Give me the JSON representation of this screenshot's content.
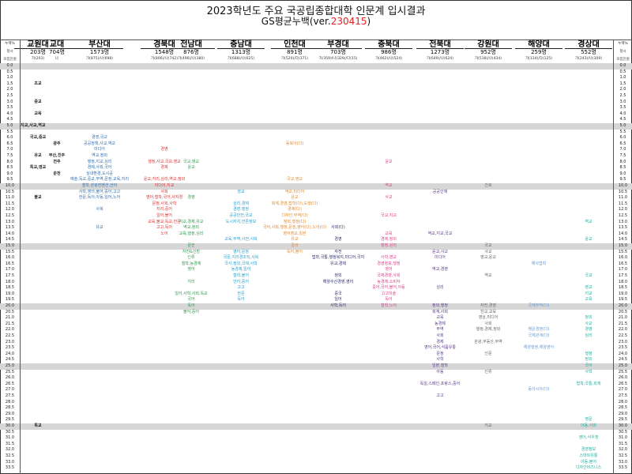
{
  "title": "2023학년도 주요 국공립종합대학 인문계 입시결과",
  "subtitle_prefix": "GS평균누백(ver.",
  "subtitle_version": "230415",
  "subtitle_suffix": ")",
  "side_labels": {
    "pct": "누백%",
    "type": "정시",
    "recruit": "모집인원"
  },
  "universities": [
    {
      "name": "교원대",
      "count": "203명",
      "detail": "가(203)",
      "color": "#222222"
    },
    {
      "name": "교대",
      "count": "704명",
      "detail": "나",
      "color": "#222222"
    },
    {
      "name": "부산대",
      "count": "1573명",
      "detail": "가(875)/나(698)",
      "color": "#2e6fb0"
    },
    {
      "name": "경북대",
      "count": "1548명",
      "detail": "가(806)/나(742)",
      "color": "#e03030"
    },
    {
      "name": "전남대",
      "count": "876명",
      "detail": "가(496)/나(380)",
      "color": "#2f9a50"
    },
    {
      "name": "충남대",
      "count": "1313명",
      "detail": "가(688)/나(625)",
      "color": "#2aa0d0"
    },
    {
      "name": "인천대",
      "count": "891명",
      "detail": "가(520)/다(371)",
      "color": "#e08a30"
    },
    {
      "name": "부경대",
      "count": "703명",
      "detail": "가(359)/나(329)/다(15)",
      "color": "#2b2b6b"
    },
    {
      "name": "충북대",
      "count": "986명",
      "detail": "가(462)/나(524)",
      "color": "#e0408a"
    },
    {
      "name": "전북대",
      "count": "1273명",
      "detail": "가(649)/나(624)",
      "color": "#5a3a8a"
    },
    {
      "name": "강원대",
      "count": "952명",
      "detail": "가(518)/나(434)",
      "color": "#666666"
    },
    {
      "name": "해양대",
      "count": "259명",
      "detail": "가(134)/다(125)",
      "color": "#6a9ad0"
    },
    {
      "name": "경상대",
      "count": "552명",
      "detail": "가(243)/나(309)",
      "color": "#20b0a0"
    }
  ],
  "pct_range": {
    "start": 0.0,
    "end": 33.5,
    "step": 0.5,
    "highlight_every": 5
  },
  "cells": [
    {
      "col": 0,
      "pct": 1.5,
      "text": "초교"
    },
    {
      "col": 0,
      "pct": 3.0,
      "text": "중교"
    },
    {
      "col": 0,
      "pct": 4.0,
      "text": "교육"
    },
    {
      "col": -1,
      "pct": 5.0,
      "text": "지교,사교,역교"
    },
    {
      "col": 0,
      "pct": 6.0,
      "text": "국교,중교"
    },
    {
      "col": 0,
      "pct": 7.5,
      "text": "유교"
    },
    {
      "col": 0,
      "pct": 8.5,
      "text": "특교,영교"
    },
    {
      "col": 0,
      "pct": 11.0,
      "text": "불교"
    },
    {
      "col": 0,
      "pct": 30.0,
      "text": "특교"
    },
    {
      "col": 1,
      "pct": 6.5,
      "text": "광주"
    },
    {
      "col": 1,
      "pct": 7.5,
      "text": "부산,진주"
    },
    {
      "col": 1,
      "pct": 8.0,
      "text": "전주"
    },
    {
      "col": 1,
      "pct": 9.0,
      "text": "춘천"
    },
    {
      "col": 2,
      "pct": 6.0,
      "text": "경영,국교"
    },
    {
      "col": 2,
      "pct": 6.5,
      "text": "공공정책,사교,역교"
    },
    {
      "col": 2,
      "pct": 7.0,
      "text": "미디어"
    },
    {
      "col": 2,
      "pct": 7.5,
      "text": "역교,정외"
    },
    {
      "col": 2,
      "pct": 8.0,
      "text": "행정,지교,심리"
    },
    {
      "col": 2,
      "pct": 8.5,
      "text": "경제,사회,국어"
    },
    {
      "col": 2,
      "pct": 9.0,
      "text": "실내환경,도시공"
    },
    {
      "col": 2,
      "pct": 9.5,
      "text": "예술,독교,중교,무역,문정,교육,지리"
    },
    {
      "col": 2,
      "pct": 10.0,
      "text": "철학,관광컨벤션,언어"
    },
    {
      "col": 2,
      "pct": 10.5,
      "text": "사학,영어,불어,중어,고고"
    },
    {
      "col": 2,
      "pct": 11.0,
      "text": "한문,독어,아동,일어,노어"
    },
    {
      "col": 2,
      "pct": 12.0,
      "text": "사복"
    },
    {
      "col": 2,
      "pct": 13.5,
      "text": "유교"
    },
    {
      "col": 3,
      "pct": 7.0,
      "text": "경영"
    },
    {
      "col": 3,
      "pct": 8.0,
      "text": "행정,사교,국교,영교"
    },
    {
      "col": 3,
      "pct": 8.5,
      "text": "경제"
    },
    {
      "col": 3,
      "pct": 9.5,
      "text": "윤교,지리,심리,역교,정외"
    },
    {
      "col": 3,
      "pct": 10.0,
      "text": "미디어,지교"
    },
    {
      "col": 3,
      "pct": 10.5,
      "text": "사회"
    },
    {
      "col": 3,
      "pct": 11.0,
      "text": "영어,철학,국어,사자경"
    },
    {
      "col": 3,
      "pct": 11.5,
      "text": "문정,사회,사학"
    },
    {
      "col": 3,
      "pct": 12.0,
      "text": "지리,중어"
    },
    {
      "col": 3,
      "pct": 12.5,
      "text": "일어,불어"
    },
    {
      "col": 3,
      "pct": 13.0,
      "text": "교육,불교,독교,한문"
    },
    {
      "col": 3,
      "pct": 13.5,
      "text": "고고,독어"
    },
    {
      "col": 3,
      "pct": 14.0,
      "text": "노어"
    },
    {
      "col": 4,
      "pct": 8.0,
      "text": "국교,영교"
    },
    {
      "col": 4,
      "pct": 8.5,
      "text": "윤교"
    },
    {
      "col": 4,
      "pct": 11.0,
      "text": "경영"
    },
    {
      "col": 4,
      "pct": 13.0,
      "text": "지교,경제,유교"
    },
    {
      "col": 4,
      "pct": 13.5,
      "text": "역교,정외"
    },
    {
      "col": 4,
      "pct": 14.0,
      "text": "교육,행정,심리"
    },
    {
      "col": 4,
      "pct": 15.0,
      "text": "문헌"
    },
    {
      "col": 4,
      "pct": 15.5,
      "text": "자전&신방"
    },
    {
      "col": 4,
      "pct": 16.0,
      "text": "인류"
    },
    {
      "col": 4,
      "pct": 16.5,
      "text": "철학,농경제"
    },
    {
      "col": 4,
      "pct": 17.0,
      "text": "영어"
    },
    {
      "col": 4,
      "pct": 18.0,
      "text": "지리"
    },
    {
      "col": 4,
      "pct": 19.0,
      "text": "일어,사학,사회,독교"
    },
    {
      "col": 4,
      "pct": 19.5,
      "text": "국어"
    },
    {
      "col": 4,
      "pct": 20.0,
      "text": "독어"
    },
    {
      "col": 4,
      "pct": 20.5,
      "text": "불어,중어"
    },
    {
      "col": 5,
      "pct": 10.5,
      "text": "영교"
    },
    {
      "col": 5,
      "pct": 11.5,
      "text": "심리,경제"
    },
    {
      "col": 5,
      "pct": 12.0,
      "text": "경영,행정"
    },
    {
      "col": 5,
      "pct": 12.5,
      "text": "공공안전,국교"
    },
    {
      "col": 5,
      "pct": 13.0,
      "text": "도시자치,언론정보"
    },
    {
      "col": 5,
      "pct": 14.5,
      "text": "교육,무역,사전,사회"
    },
    {
      "col": 5,
      "pct": 15.5,
      "text": "영어,문정"
    },
    {
      "col": 5,
      "pct": 16.0,
      "text": "국문,지리경조직,사복"
    },
    {
      "col": 5,
      "pct": 16.5,
      "text": "국사,정외,국제,사학"
    },
    {
      "col": 5,
      "pct": 17.0,
      "text": "농경제,일어"
    },
    {
      "col": 5,
      "pct": 17.5,
      "text": "철학,불어"
    },
    {
      "col": 5,
      "pct": 18.0,
      "text": "언어,중어"
    },
    {
      "col": 5,
      "pct": 18.5,
      "text": "고고"
    },
    {
      "col": 5,
      "pct": 19.0,
      "text": "한문"
    },
    {
      "col": 5,
      "pct": 19.5,
      "text": "독어"
    },
    {
      "col": 6,
      "pct": 6.5,
      "text": "동북아(다)"
    },
    {
      "col": 6,
      "pct": 9.5,
      "text": "국교,영교"
    },
    {
      "col": 6,
      "pct": 10.5,
      "text": "역교,미디어"
    },
    {
      "col": 6,
      "pct": 11.0,
      "text": "윤교"
    },
    {
      "col": 6,
      "pct": 11.5,
      "text": "회계,경영,법학(다),도행(다)"
    },
    {
      "col": 6,
      "pct": 12.0,
      "text": "경제(다)"
    },
    {
      "col": 6,
      "pct": 12.5,
      "text": "디자인,무역(다)"
    },
    {
      "col": 6,
      "pct": 13.0,
      "text": "정외,행정(다)"
    },
    {
      "col": 6,
      "pct": 13.5,
      "text": "국어,사회,행정,문정,영어(다),노어(다)"
    },
    {
      "col": 6,
      "pct": 14.0,
      "text": "영어영교,일본"
    },
    {
      "col": 6,
      "pct": 14.5,
      "text": "유교"
    },
    {
      "col": 6,
      "pct": 15.0,
      "text": "중어"
    },
    {
      "col": 6,
      "pct": 15.5,
      "text": "독어,불어"
    },
    {
      "col": 7,
      "pct": 13.5,
      "text": "사회(다)"
    },
    {
      "col": 7,
      "pct": 14.5,
      "text": "경영"
    },
    {
      "col": 7,
      "pct": 15.5,
      "text": "자전"
    },
    {
      "col": 7,
      "pct": 16.0,
      "text": "법학,국통,행정복지,미디어,국지"
    },
    {
      "col": 7,
      "pct": 16.5,
      "text": "유교,경제"
    },
    {
      "col": 7,
      "pct": 17.5,
      "text": "정외"
    },
    {
      "col": 7,
      "pct": 18.0,
      "text": "해양수산경영,영어"
    },
    {
      "col": 7,
      "pct": 19.0,
      "text": "중국"
    },
    {
      "col": 7,
      "pct": 19.5,
      "text": "일어"
    },
    {
      "col": 7,
      "pct": 20.0,
      "text": "사학,독어"
    },
    {
      "col": 8,
      "pct": 8.0,
      "text": "윤교"
    },
    {
      "col": 8,
      "pct": 10.0,
      "text": "역교"
    },
    {
      "col": 8,
      "pct": 11.0,
      "text": "사교"
    },
    {
      "col": 8,
      "pct": 12.5,
      "text": "국교,지교"
    },
    {
      "col": 8,
      "pct": 14.0,
      "text": "교육"
    },
    {
      "col": 8,
      "pct": 14.5,
      "text": "경제,정외"
    },
    {
      "col": 8,
      "pct": 15.0,
      "text": "행정,심리"
    },
    {
      "col": 8,
      "pct": 16.0,
      "text": "사학,영교"
    },
    {
      "col": 8,
      "pct": 16.5,
      "text": "경영정보,행정"
    },
    {
      "col": 8,
      "pct": 17.0,
      "text": "영어"
    },
    {
      "col": 8,
      "pct": 17.5,
      "text": "국제경영,사회"
    },
    {
      "col": 8,
      "pct": 18.0,
      "text": "농경제,소비자"
    },
    {
      "col": 8,
      "pct": 18.5,
      "text": "중어,국어,불어,아동"
    },
    {
      "col": 8,
      "pct": 19.0,
      "text": "고고미술"
    },
    {
      "col": 8,
      "pct": 19.5,
      "text": "독어"
    },
    {
      "col": 8,
      "pct": 20.0,
      "text": "철학,노어"
    },
    {
      "col": 9,
      "pct": 10.5,
      "text": "공공인재"
    },
    {
      "col": 9,
      "pct": 14.0,
      "text": "역교,지교,국교"
    },
    {
      "col": 9,
      "pct": 15.5,
      "text": "윤교,사교"
    },
    {
      "col": 9,
      "pct": 16.0,
      "text": "미디어"
    },
    {
      "col": 9,
      "pct": 17.0,
      "text": "역교,경영"
    },
    {
      "col": 9,
      "pct": 18.5,
      "text": "심리"
    },
    {
      "col": 9,
      "pct": 20.0,
      "text": "정외,행정"
    },
    {
      "col": 9,
      "pct": 20.5,
      "text": "회계,사회"
    },
    {
      "col": 9,
      "pct": 21.0,
      "text": "교육"
    },
    {
      "col": 9,
      "pct": 21.5,
      "text": "농경제"
    },
    {
      "col": 9,
      "pct": 22.0,
      "text": "무역"
    },
    {
      "col": 9,
      "pct": 22.5,
      "text": "사회"
    },
    {
      "col": 9,
      "pct": 23.0,
      "text": "경제"
    },
    {
      "col": 9,
      "pct": 23.5,
      "text": "영어,국어,식품유통"
    },
    {
      "col": 9,
      "pct": 24.0,
      "text": "문정"
    },
    {
      "col": 9,
      "pct": 24.5,
      "text": "사학"
    },
    {
      "col": 9,
      "pct": 25.0,
      "text": "일본,철학"
    },
    {
      "col": 9,
      "pct": 25.5,
      "text": "아동"
    },
    {
      "col": 9,
      "pct": 26.5,
      "text": "독일,스페인,프랑스,중어"
    },
    {
      "col": 9,
      "pct": 27.5,
      "text": "고고"
    },
    {
      "col": 10,
      "pct": 10.0,
      "text": "간호"
    },
    {
      "col": 10,
      "pct": 15.0,
      "text": "국교"
    },
    {
      "col": 10,
      "pct": 15.5,
      "text": "사교"
    },
    {
      "col": 10,
      "pct": 16.0,
      "text": "영교,윤교"
    },
    {
      "col": 10,
      "pct": 17.5,
      "text": "역교"
    },
    {
      "col": 10,
      "pct": 20.0,
      "text": "자전,경영"
    },
    {
      "col": 10,
      "pct": 20.5,
      "text": "한교,교육"
    },
    {
      "col": 10,
      "pct": 21.0,
      "text": "영상,미디어"
    },
    {
      "col": 10,
      "pct": 21.5,
      "text": "사회"
    },
    {
      "col": 10,
      "pct": 22.0,
      "text": "행정,경제,정외"
    },
    {
      "col": 10,
      "pct": 23.0,
      "text": "관광,부동산,무역"
    },
    {
      "col": 10,
      "pct": 24.0,
      "text": "인문"
    },
    {
      "col": 10,
      "pct": 25.5,
      "text": "인류"
    },
    {
      "col": 10,
      "pct": 30.0,
      "text": "지교"
    },
    {
      "col": 11,
      "pct": 16.5,
      "text": "해사법학"
    },
    {
      "col": 11,
      "pct": 20.0,
      "text": "국제무역(다)"
    },
    {
      "col": 11,
      "pct": 22.0,
      "text": "해운경영(다)"
    },
    {
      "col": 11,
      "pct": 22.5,
      "text": "국제관계(다)"
    },
    {
      "col": 11,
      "pct": 23.5,
      "text": "해양행정,해양영어"
    },
    {
      "col": 11,
      "pct": 27.0,
      "text": "동아시아(다)"
    },
    {
      "col": 12,
      "pct": 13.0,
      "text": "역교"
    },
    {
      "col": 12,
      "pct": 14.5,
      "text": "윤교"
    },
    {
      "col": 12,
      "pct": 17.5,
      "text": "국교"
    },
    {
      "col": 12,
      "pct": 18.5,
      "text": "영교"
    },
    {
      "col": 12,
      "pct": 19.0,
      "text": "지교"
    },
    {
      "col": 12,
      "pct": 19.5,
      "text": "교육"
    },
    {
      "col": 12,
      "pct": 21.0,
      "text": "정외"
    },
    {
      "col": 12,
      "pct": 21.5,
      "text": "사교"
    },
    {
      "col": 12,
      "pct": 22.0,
      "text": "경영"
    },
    {
      "col": 12,
      "pct": 22.5,
      "text": "심리"
    },
    {
      "col": 12,
      "pct": 24.0,
      "text": "행정"
    },
    {
      "col": 12,
      "pct": 24.5,
      "text": "정외"
    },
    {
      "col": 12,
      "pct": 25.0,
      "text": "국어"
    },
    {
      "col": 12,
      "pct": 25.5,
      "text": "사학"
    },
    {
      "col": 12,
      "pct": 26.5,
      "text": "법학,국통,회계"
    },
    {
      "col": 12,
      "pct": 29.5,
      "text": "영문"
    },
    {
      "col": 12,
      "pct": 30.0,
      "text": "아동,사회"
    },
    {
      "col": 12,
      "pct": 31.0,
      "text": "영어,식우영"
    },
    {
      "col": 12,
      "pct": 32.0,
      "text": "경영정보"
    },
    {
      "col": 12,
      "pct": 32.5,
      "text": "스마트유통"
    },
    {
      "col": 12,
      "pct": 33.0,
      "text": "아동,불어"
    },
    {
      "col": 12,
      "pct": 33.5,
      "text": "디자인비즈니스"
    }
  ]
}
